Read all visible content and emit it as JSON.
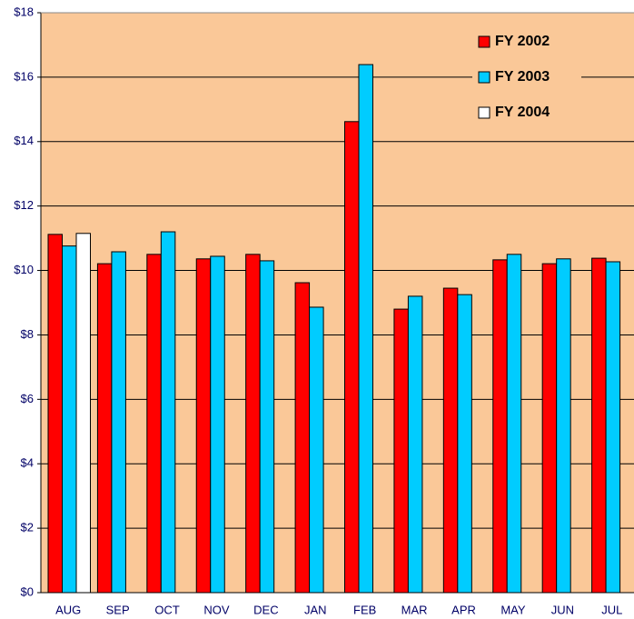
{
  "chart_data": {
    "type": "bar",
    "categories": [
      "AUG",
      "SEP",
      "OCT",
      "NOV",
      "DEC",
      "JAN",
      "FEB",
      "MAR",
      "APR",
      "MAY",
      "JUN",
      "JUL"
    ],
    "series": [
      {
        "name": "FY 2002",
        "color": "#ff0000",
        "values": [
          11.12,
          10.21,
          10.5,
          10.36,
          10.5,
          9.62,
          14.62,
          8.8,
          9.45,
          10.33,
          10.21,
          10.38
        ]
      },
      {
        "name": "FY 2003",
        "color": "#00ccff",
        "values": [
          10.76,
          10.58,
          11.2,
          10.44,
          10.3,
          8.86,
          16.39,
          9.2,
          9.25,
          10.5,
          10.36,
          10.27
        ]
      },
      {
        "name": "FY 2004",
        "color": "#ffffff",
        "values": [
          11.15,
          null,
          null,
          null,
          null,
          null,
          null,
          null,
          null,
          null,
          null,
          null
        ]
      }
    ],
    "ylim": [
      0,
      18
    ],
    "yticks": [
      {
        "value": 0,
        "label": "$0"
      },
      {
        "value": 2,
        "label": "$2"
      },
      {
        "value": 4,
        "label": "$4"
      },
      {
        "value": 6,
        "label": "$6"
      },
      {
        "value": 8,
        "label": "$8"
      },
      {
        "value": 10,
        "label": "$10"
      },
      {
        "value": 12,
        "label": "$12"
      },
      {
        "value": 14,
        "label": "$14"
      },
      {
        "value": 16,
        "label": "$16"
      },
      {
        "value": 18,
        "label": "$18"
      }
    ],
    "grid": true,
    "legend": "top-right",
    "background": "#fac898"
  }
}
